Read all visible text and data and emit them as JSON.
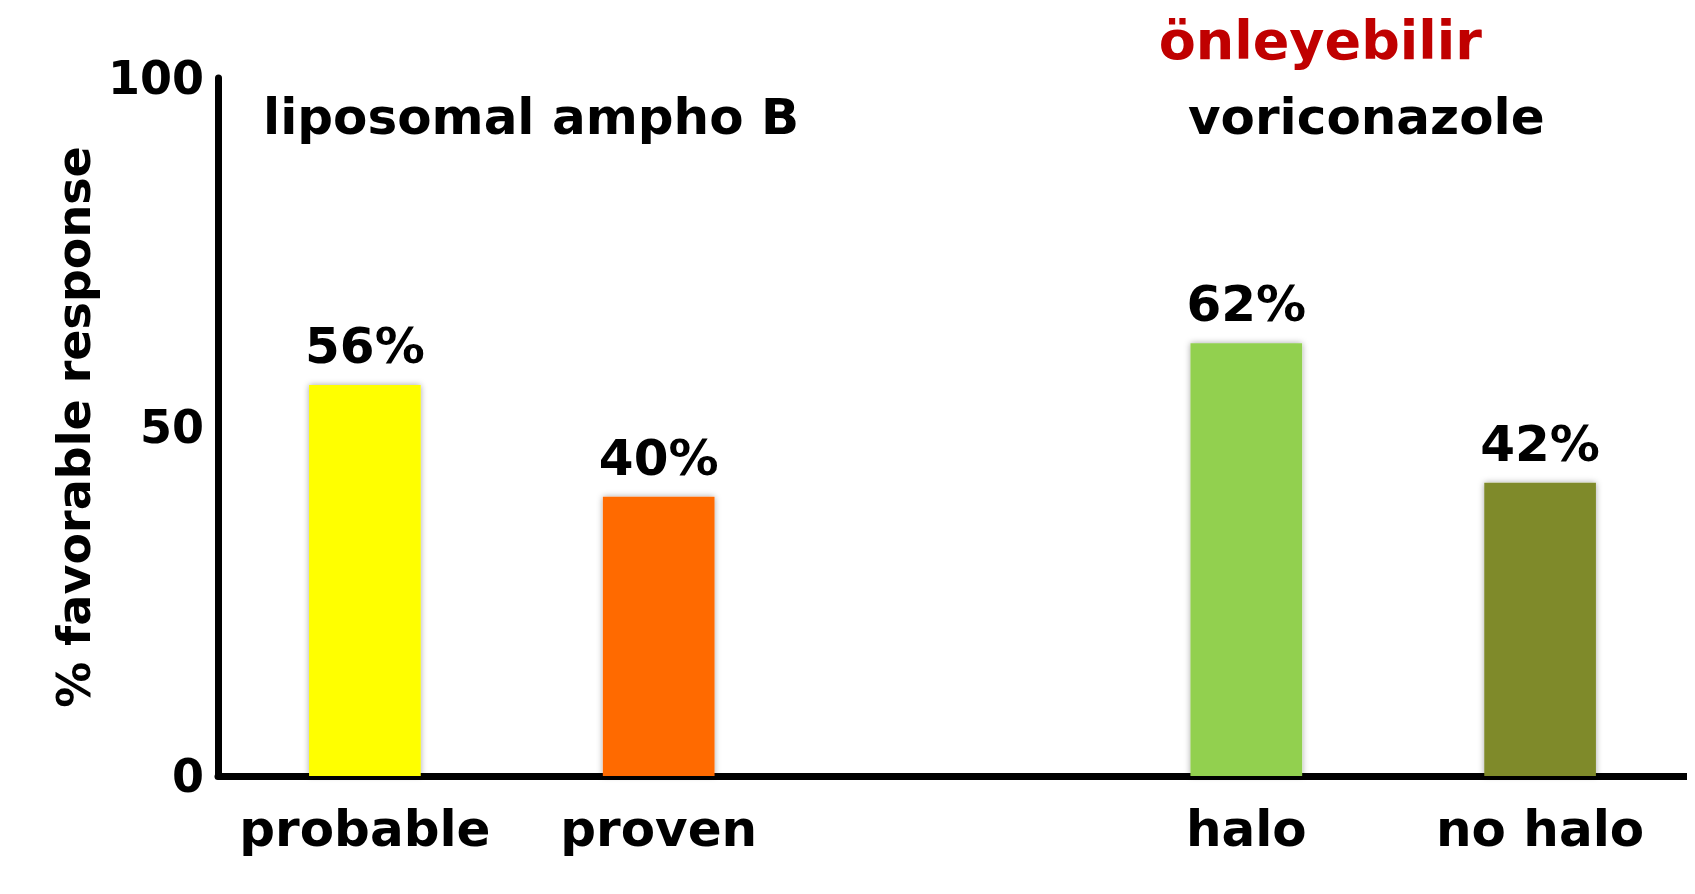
{
  "chart_data": {
    "type": "bar",
    "title": "önleyebilir",
    "ylabel": "% favorable response",
    "categories": [
      "probable",
      "proven",
      null,
      "halo",
      "no halo"
    ],
    "values": [
      56,
      40,
      null,
      62,
      42
    ],
    "colors": [
      "#ffff00",
      "#ff6a00",
      "#ffffff",
      "#92d050",
      "#7f8a2a"
    ],
    "value_labels": [
      "56%",
      "40%",
      null,
      "62%",
      "42%"
    ],
    "annotations": [
      "liposomal ampho B",
      "voriconazole"
    ],
    "ylim": [
      0,
      100
    ],
    "yticks": [
      0,
      50,
      100
    ],
    "grid": false
  }
}
